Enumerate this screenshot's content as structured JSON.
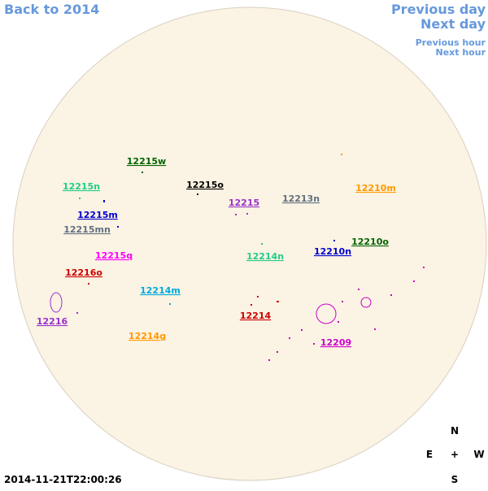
{
  "nav": {
    "back": "Back to 2014",
    "previous_day": "Previous day",
    "next_day": "Next day",
    "previous_hour": "Previous hour",
    "next_hour": "Next hour"
  },
  "timestamp": "2014-11-21T22:00:26",
  "compass": {
    "north": "N",
    "east": "E",
    "center": "+",
    "west": "W",
    "south": "S"
  },
  "regions": [
    {
      "label": "12215w",
      "color": "#006400"
    },
    {
      "label": "12215n",
      "color": "#22cc88"
    },
    {
      "label": "12215o",
      "color": "#000000"
    },
    {
      "label": "12215",
      "color": "#9933cc"
    },
    {
      "label": "12213n",
      "color": "#607080"
    },
    {
      "label": "12210m",
      "color": "#ff9900"
    },
    {
      "label": "12215m",
      "color": "#0000cc"
    },
    {
      "label": "12215mn",
      "color": "#607080"
    },
    {
      "label": "12215q",
      "color": "#ff00ff"
    },
    {
      "label": "12216o",
      "color": "#cc0000"
    },
    {
      "label": "12214n",
      "color": "#22cc88"
    },
    {
      "label": "12210n",
      "color": "#0000cc"
    },
    {
      "label": "12210o",
      "color": "#006400"
    },
    {
      "label": "12214m",
      "color": "#00aadd"
    },
    {
      "label": "12214",
      "color": "#cc0000"
    },
    {
      "label": "12209",
      "color": "#cc00cc"
    },
    {
      "label": "12216",
      "color": "#9933cc"
    },
    {
      "label": "12214g",
      "color": "#ff9900"
    }
  ]
}
